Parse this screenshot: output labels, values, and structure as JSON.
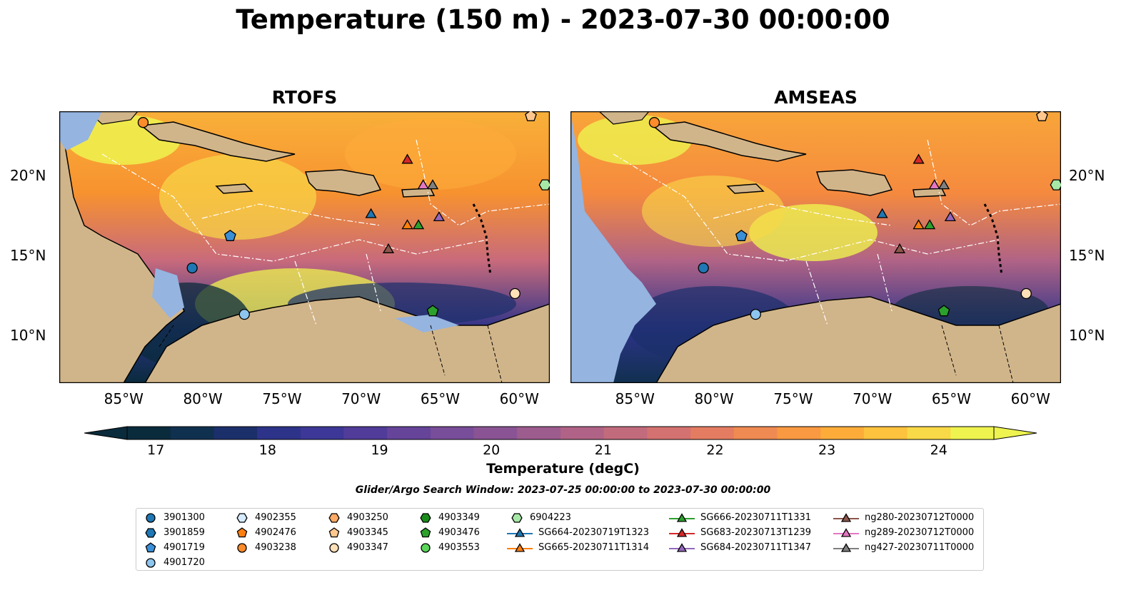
{
  "title": "Temperature (150 m) - 2023-07-30 00:00:00",
  "panels": {
    "left_title": "RTOFS",
    "right_title": "AMSEAS"
  },
  "axes": {
    "lon_labels": [
      "85°W",
      "80°W",
      "75°W",
      "70°W",
      "65°W",
      "60°W"
    ],
    "lat_labels": [
      "20°N",
      "15°N",
      "10°N"
    ],
    "lon_range": [
      -89,
      -58
    ],
    "lat_range": [
      7,
      24
    ]
  },
  "colorbar": {
    "ticks": [
      "17",
      "18",
      "19",
      "20",
      "21",
      "22",
      "23",
      "24"
    ],
    "title": "Temperature (degC)",
    "range": [
      16.75,
      24.5
    ],
    "extend": "both",
    "colors": [
      "#0a2b3c",
      "#10304f",
      "#1b2f6b",
      "#2d3389",
      "#3d3797",
      "#513c99",
      "#65449a",
      "#784d99",
      "#8a5494",
      "#9d5c8e",
      "#b06386",
      "#c26b7d",
      "#d47271",
      "#e47c62",
      "#ef8a52",
      "#f99942",
      "#fdac3a",
      "#fdc23e",
      "#f8d947",
      "#eef34f"
    ]
  },
  "search_window": "Glider/Argo Search Window: 2023-07-25 00:00:00 to 2023-07-30 00:00:00",
  "legend": [
    {
      "label": "3901300",
      "marker": "circle",
      "color": "#1f77b4"
    },
    {
      "label": "3901859",
      "marker": "hexagon",
      "color": "#1f77b4"
    },
    {
      "label": "4901719",
      "marker": "pentagon",
      "color": "#3a8fd6"
    },
    {
      "label": "4901720",
      "marker": "circle",
      "color": "#8ec5ef"
    },
    {
      "label": "4902355",
      "marker": "hexagon",
      "color": "#d6ebff"
    },
    {
      "label": "4902476",
      "marker": "pentagon",
      "color": "#ff7f0e"
    },
    {
      "label": "4903238",
      "marker": "circle",
      "color": "#ff8c2a"
    },
    {
      "label": "4903250",
      "marker": "hexagon",
      "color": "#ffaa66"
    },
    {
      "label": "4903345",
      "marker": "pentagon",
      "color": "#ffc78e"
    },
    {
      "label": "4903347",
      "marker": "circle",
      "color": "#ffe0b8"
    },
    {
      "label": "4903349",
      "marker": "hexagon",
      "color": "#1a8c1a"
    },
    {
      "label": "4903476",
      "marker": "pentagon",
      "color": "#2ca02c"
    },
    {
      "label": "4903553",
      "marker": "circle",
      "color": "#5bd65b"
    },
    {
      "label": "6904223",
      "marker": "hexagon",
      "color": "#a6e8a6"
    },
    {
      "label": "SG664-20230719T1323",
      "marker": "triangle-line",
      "color": "#1f77b4"
    },
    {
      "label": "SG665-20230711T1314",
      "marker": "triangle-line",
      "color": "#ff7f0e"
    },
    {
      "label": "SG666-20230711T1331",
      "marker": "triangle-line",
      "color": "#2ca02c"
    },
    {
      "label": "SG683-20230713T1239",
      "marker": "triangle-line",
      "color": "#d62728"
    },
    {
      "label": "SG684-20230711T1347",
      "marker": "triangle-line",
      "color": "#9467bd"
    },
    {
      "label": "ng280-20230712T0000",
      "marker": "triangle-line",
      "color": "#8c564b"
    },
    {
      "label": "ng289-20230712T0000",
      "marker": "triangle-line",
      "color": "#e377c2"
    },
    {
      "label": "ng427-20230711T0000",
      "marker": "triangle-line",
      "color": "#7f7f7f"
    }
  ],
  "observations": [
    {
      "id": "SG683-20230713T1239",
      "lon": -67.0,
      "lat": 21.0
    },
    {
      "id": "ng289-20230712T0000",
      "lon": -66.0,
      "lat": 19.4
    },
    {
      "id": "ng427-20230711T0000",
      "lon": -65.4,
      "lat": 19.4
    },
    {
      "id": "SG664-20230719T1323",
      "lon": -69.3,
      "lat": 17.6
    },
    {
      "id": "SG665-20230711T1314",
      "lon": -67.0,
      "lat": 16.9
    },
    {
      "id": "SG666-20230711T1331",
      "lon": -66.3,
      "lat": 16.9
    },
    {
      "id": "SG684-20230711T1347",
      "lon": -65.0,
      "lat": 17.4
    },
    {
      "id": "ng280-20230712T0000",
      "lon": -68.2,
      "lat": 15.4
    },
    {
      "id": "4901719",
      "lon": -78.2,
      "lat": 16.2
    },
    {
      "id": "3901300",
      "lon": -80.6,
      "lat": 14.2
    },
    {
      "id": "4901720",
      "lon": -77.3,
      "lat": 11.3
    },
    {
      "id": "4903476",
      "lon": -65.4,
      "lat": 11.5
    },
    {
      "id": "4903347",
      "lon": -60.2,
      "lat": 12.6
    },
    {
      "id": "6904223",
      "lon": -58.3,
      "lat": 19.4
    },
    {
      "id": "4903238",
      "lon": -83.7,
      "lat": 23.3
    },
    {
      "id": "4903345",
      "lon": -59.2,
      "lat": 23.7
    }
  ]
}
